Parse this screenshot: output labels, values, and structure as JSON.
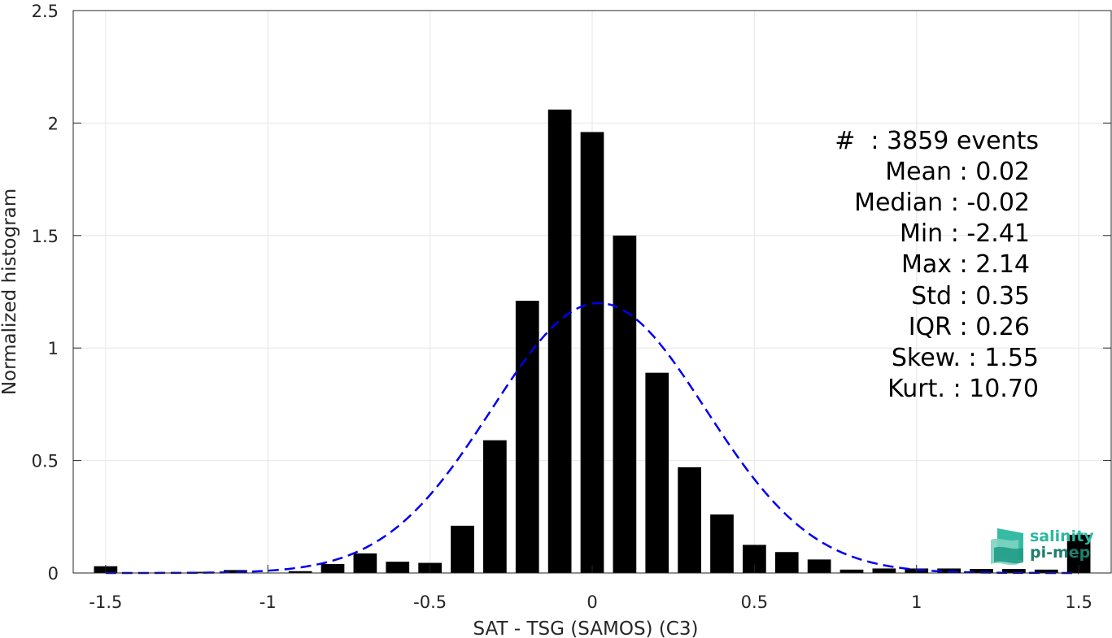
{
  "chart_data": {
    "type": "bar",
    "title": "",
    "xlabel": "SAT - TSG (SAMOS) (C3)",
    "ylabel": "Normalized histogram",
    "xlim": [
      -1.6,
      1.6
    ],
    "ylim": [
      0,
      2.5
    ],
    "grid": true,
    "x_ticks": [
      -1.5,
      -1,
      -0.5,
      0,
      0.5,
      1,
      1.5
    ],
    "x_tick_labels": [
      "-1.5",
      "-1",
      "-0.5",
      "0",
      "0.5",
      "1",
      "1.5"
    ],
    "y_ticks": [
      0,
      0.5,
      1,
      1.5,
      2,
      2.5
    ],
    "y_tick_labels": [
      "0",
      "0.5",
      "1",
      "1.5",
      "2",
      "2.5"
    ],
    "bin_width": 0.1,
    "bars": [
      {
        "x": -1.5,
        "value": 0.03
      },
      {
        "x": -1.4,
        "value": 0.0
      },
      {
        "x": -1.3,
        "value": 0.0
      },
      {
        "x": -1.2,
        "value": 0.005
      },
      {
        "x": -1.1,
        "value": 0.013
      },
      {
        "x": -1.0,
        "value": 0.0
      },
      {
        "x": -0.9,
        "value": 0.008
      },
      {
        "x": -0.8,
        "value": 0.04
      },
      {
        "x": -0.7,
        "value": 0.087
      },
      {
        "x": -0.6,
        "value": 0.05
      },
      {
        "x": -0.5,
        "value": 0.045
      },
      {
        "x": -0.4,
        "value": 0.21
      },
      {
        "x": -0.3,
        "value": 0.59
      },
      {
        "x": -0.2,
        "value": 1.21
      },
      {
        "x": -0.1,
        "value": 2.06
      },
      {
        "x": 0.0,
        "value": 1.96
      },
      {
        "x": 0.1,
        "value": 1.5
      },
      {
        "x": 0.2,
        "value": 0.89
      },
      {
        "x": 0.3,
        "value": 0.47
      },
      {
        "x": 0.4,
        "value": 0.26
      },
      {
        "x": 0.5,
        "value": 0.125
      },
      {
        "x": 0.6,
        "value": 0.093
      },
      {
        "x": 0.7,
        "value": 0.06
      },
      {
        "x": 0.8,
        "value": 0.015
      },
      {
        "x": 0.9,
        "value": 0.02
      },
      {
        "x": 1.0,
        "value": 0.02
      },
      {
        "x": 1.1,
        "value": 0.02
      },
      {
        "x": 1.2,
        "value": 0.018
      },
      {
        "x": 1.3,
        "value": 0.018
      },
      {
        "x": 1.4,
        "value": 0.015
      },
      {
        "x": 1.5,
        "value": 0.17
      }
    ],
    "fit_curve": {
      "style": "dashed",
      "color": "#0000ee",
      "kind": "gaussian",
      "mean": 0.02,
      "std": 0.33,
      "peak": 1.2
    },
    "bar_color": "#000000"
  },
  "stats": {
    "events": "#  : 3859 events",
    "mean": "Mean : 0.02",
    "median": "Median : -0.02",
    "min": "Min : -2.41",
    "max": "Max : 2.14",
    "std": "Std : 0.35",
    "iqr": "IQR : 0.26",
    "skew": "Skew. : 1.55",
    "kurt": "Kurt. : 10.70"
  },
  "logo": {
    "line1": "salinity",
    "line2": "pi-mep",
    "color_top": "#2bb8a0",
    "color_bottom": "#1f7f6e"
  }
}
